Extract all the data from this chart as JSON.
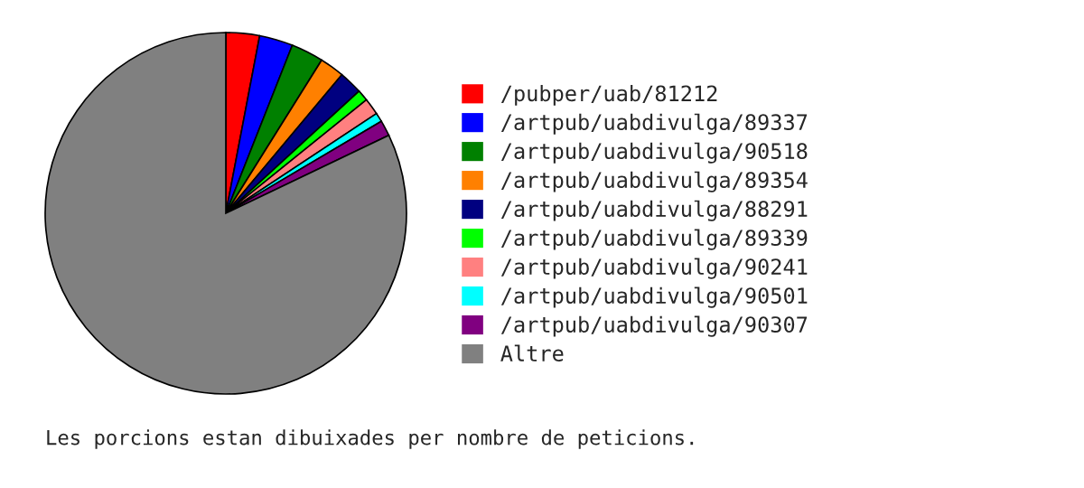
{
  "chart_data": {
    "type": "pie",
    "categories": [
      "/pubper/uab/81212",
      "/artpub/uabdivulga/89337",
      "/artpub/uabdivulga/90518",
      "/artpub/uabdivulga/89354",
      "/artpub/uabdivulga/88291",
      "/artpub/uabdivulga/89339",
      "/artpub/uabdivulga/90241",
      "/artpub/uabdivulga/90501",
      "/artpub/uabdivulga/90307",
      "Altre"
    ],
    "values": [
      3.0,
      3.0,
      2.9,
      2.2,
      2.1,
      1.0,
      1.5,
      0.8,
      1.4,
      82.1
    ],
    "colors": [
      "#ff0000",
      "#0000ff",
      "#008000",
      "#ff8000",
      "#000080",
      "#00ff00",
      "#ff8080",
      "#00ffff",
      "#800080",
      "#808080"
    ],
    "legend": "right",
    "annotations": [
      "Les porcions estan dibuixades per nombre de peticions."
    ]
  }
}
